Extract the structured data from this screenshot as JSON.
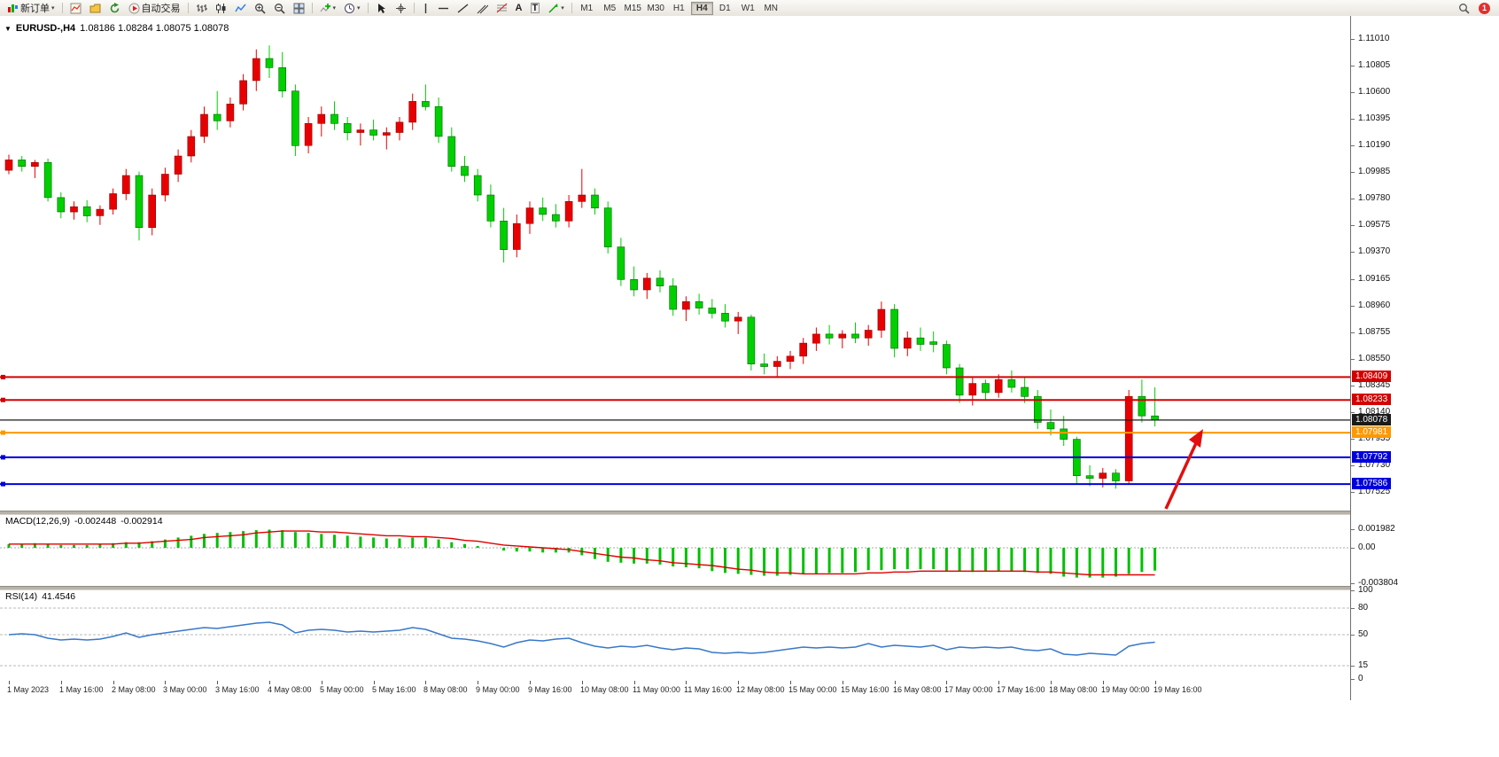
{
  "toolbar": {
    "new_order_label": "新订单",
    "auto_trading_label": "自动交易",
    "text_tool_letter": "A",
    "label_tool_letter": "T",
    "timeframes": [
      "M1",
      "M5",
      "M15",
      "M30",
      "H1",
      "H4",
      "D1",
      "W1",
      "MN"
    ],
    "active_timeframe": "H4",
    "notification_badge": "1",
    "icons": {
      "dropdown_glyph": "▼",
      "caret_glyph": "▾"
    }
  },
  "main_chart": {
    "symbol_label": "EURUSD-,H4",
    "ohlc_label": "1.08186 1.08284 1.08075 1.08078",
    "up_color": "#e80000",
    "down_color": "#00cf00",
    "annotation_arrow_color": "#e01010",
    "price_axis_labels": [
      "1.11010",
      "1.10805",
      "1.10600",
      "1.10395",
      "1.10190",
      "1.09985",
      "1.09780",
      "1.09575",
      "1.09370",
      "1.09165",
      "1.08960",
      "1.08755",
      "1.08550",
      "1.08345",
      "1.08140",
      "1.07935",
      "1.07730",
      "1.07525"
    ],
    "levels": [
      {
        "label": "1.08409",
        "price": 1.08409,
        "color": "#d40000",
        "style": "solid"
      },
      {
        "label": "1.08233",
        "price": 1.08233,
        "color": "#d40000",
        "style": "solid"
      },
      {
        "label": "1.08078",
        "price": 1.08078,
        "color": "#1a1a1a",
        "style": "bid"
      },
      {
        "label": "1.07981",
        "price": 1.07981,
        "color": "#ff9800",
        "style": "solid"
      },
      {
        "label": "1.07792",
        "price": 1.07792,
        "color": "#0000dc",
        "style": "solid"
      },
      {
        "label": "1.07586",
        "price": 1.07586,
        "color": "#0000dc",
        "style": "solid"
      }
    ]
  },
  "chart_data": {
    "type": "candlestick",
    "symbol": "EURUSD",
    "timeframe": "H4",
    "price_range": [
      1.07525,
      1.1101
    ],
    "candles": [
      [
        1.1,
        1.1012,
        1.0997,
        1.1008
      ],
      [
        1.1008,
        1.1011,
        1.0999,
        1.1003
      ],
      [
        1.1003,
        1.1008,
        1.0994,
        1.1006
      ],
      [
        1.1006,
        1.1009,
        1.0976,
        1.0979
      ],
      [
        1.0979,
        1.0983,
        1.0963,
        1.0968
      ],
      [
        1.0968,
        1.0976,
        1.0962,
        1.0972
      ],
      [
        1.0972,
        1.0977,
        1.096,
        1.0965
      ],
      [
        1.0965,
        1.0973,
        1.0958,
        1.097
      ],
      [
        1.097,
        1.0986,
        1.0966,
        1.0982
      ],
      [
        1.0982,
        1.1001,
        1.0977,
        1.0996
      ],
      [
        1.0996,
        1.0999,
        1.0946,
        1.0956
      ],
      [
        1.0956,
        1.0986,
        1.095,
        1.0981
      ],
      [
        1.0981,
        1.1002,
        1.0976,
        1.0997
      ],
      [
        1.0997,
        1.1016,
        1.0991,
        1.1011
      ],
      [
        1.1011,
        1.1031,
        1.1006,
        1.1026
      ],
      [
        1.1026,
        1.1049,
        1.1021,
        1.1043
      ],
      [
        1.1043,
        1.1061,
        1.1031,
        1.1038
      ],
      [
        1.1038,
        1.1056,
        1.1033,
        1.1051
      ],
      [
        1.1051,
        1.1074,
        1.1046,
        1.1069
      ],
      [
        1.1069,
        1.1093,
        1.1061,
        1.1086
      ],
      [
        1.1086,
        1.1096,
        1.1071,
        1.1079
      ],
      [
        1.1079,
        1.1091,
        1.1056,
        1.1061
      ],
      [
        1.1061,
        1.1066,
        1.1011,
        1.1019
      ],
      [
        1.1019,
        1.1041,
        1.1013,
        1.1036
      ],
      [
        1.1036,
        1.1049,
        1.1026,
        1.1043
      ],
      [
        1.1043,
        1.1053,
        1.1031,
        1.1036
      ],
      [
        1.1036,
        1.1041,
        1.1023,
        1.1029
      ],
      [
        1.1029,
        1.1036,
        1.1019,
        1.1031
      ],
      [
        1.1031,
        1.1039,
        1.1023,
        1.1027
      ],
      [
        1.1027,
        1.1033,
        1.1016,
        1.1029
      ],
      [
        1.1029,
        1.1041,
        1.1023,
        1.1037
      ],
      [
        1.1037,
        1.1059,
        1.1031,
        1.1053
      ],
      [
        1.1053,
        1.1066,
        1.1046,
        1.1049
      ],
      [
        1.1049,
        1.1056,
        1.1021,
        1.1026
      ],
      [
        1.1026,
        1.1033,
        1.0999,
        1.1003
      ],
      [
        1.1003,
        1.1011,
        1.0991,
        1.0996
      ],
      [
        1.0996,
        1.1001,
        1.0976,
        1.0981
      ],
      [
        1.0981,
        1.0989,
        1.0956,
        1.0961
      ],
      [
        1.0961,
        1.0971,
        1.0929,
        1.0939
      ],
      [
        1.0939,
        1.0966,
        1.0933,
        1.0959
      ],
      [
        1.0959,
        1.0976,
        1.0951,
        1.0971
      ],
      [
        1.0971,
        1.0979,
        1.0961,
        1.0966
      ],
      [
        1.0966,
        1.0974,
        1.0956,
        1.0961
      ],
      [
        1.0961,
        1.0981,
        1.0956,
        1.0976
      ],
      [
        1.0976,
        1.1001,
        1.0971,
        1.0981
      ],
      [
        1.0981,
        1.0986,
        1.0966,
        1.0971
      ],
      [
        1.0971,
        1.0976,
        1.0936,
        1.0941
      ],
      [
        1.0941,
        1.0948,
        1.0911,
        1.0916
      ],
      [
        1.0916,
        1.0926,
        1.0903,
        1.0908
      ],
      [
        1.0908,
        1.0921,
        1.0901,
        1.0917
      ],
      [
        1.0917,
        1.0923,
        1.0906,
        1.0911
      ],
      [
        1.0911,
        1.0917,
        1.0888,
        1.0893
      ],
      [
        1.0893,
        1.0903,
        1.0884,
        1.0899
      ],
      [
        1.0899,
        1.0905,
        1.0889,
        1.0894
      ],
      [
        1.0894,
        1.0901,
        1.0886,
        1.089
      ],
      [
        1.089,
        1.0897,
        1.0879,
        1.0884
      ],
      [
        1.0884,
        1.0891,
        1.0874,
        1.0887
      ],
      [
        1.0887,
        1.0889,
        1.0846,
        1.0851
      ],
      [
        1.0851,
        1.0859,
        1.0843,
        1.0849
      ],
      [
        1.0849,
        1.0857,
        1.0841,
        1.0853
      ],
      [
        1.0853,
        1.0861,
        1.0847,
        1.0857
      ],
      [
        1.0857,
        1.0871,
        1.0851,
        1.0867
      ],
      [
        1.0867,
        1.0879,
        1.0861,
        1.0874
      ],
      [
        1.0874,
        1.0881,
        1.0866,
        1.0871
      ],
      [
        1.0871,
        1.0877,
        1.0863,
        1.0874
      ],
      [
        1.0874,
        1.0883,
        1.0867,
        1.0871
      ],
      [
        1.0871,
        1.0881,
        1.0865,
        1.0877
      ],
      [
        1.0877,
        1.0899,
        1.0871,
        1.0893
      ],
      [
        1.0893,
        1.0897,
        1.0856,
        1.0863
      ],
      [
        1.0863,
        1.0876,
        1.0857,
        1.0871
      ],
      [
        1.0871,
        1.0879,
        1.0861,
        1.0866
      ],
      [
        1.0868,
        1.0876,
        1.086,
        1.0866
      ],
      [
        1.0866,
        1.0869,
        1.0843,
        1.0848
      ],
      [
        1.0848,
        1.0851,
        1.0821,
        1.0827
      ],
      [
        1.0827,
        1.0841,
        1.0819,
        1.0836
      ],
      [
        1.0836,
        1.0839,
        1.0823,
        1.0829
      ],
      [
        1.0829,
        1.0843,
        1.0825,
        1.0839
      ],
      [
        1.0839,
        1.0846,
        1.0829,
        1.0833
      ],
      [
        1.0833,
        1.0841,
        1.0821,
        1.0826
      ],
      [
        1.0826,
        1.0831,
        1.0801,
        1.0806
      ],
      [
        1.0806,
        1.0816,
        1.0796,
        1.0801
      ],
      [
        1.0801,
        1.0811,
        1.0788,
        1.0793
      ],
      [
        1.0793,
        1.0795,
        1.0759,
        1.0765
      ],
      [
        1.0765,
        1.0773,
        1.0757,
        1.0763
      ],
      [
        1.0763,
        1.0771,
        1.0756,
        1.0767
      ],
      [
        1.0767,
        1.077,
        1.0755,
        1.0761
      ],
      [
        1.0761,
        1.0831,
        1.0758,
        1.0826
      ],
      [
        1.0826,
        1.0839,
        1.0806,
        1.0811
      ],
      [
        1.0811,
        1.0833,
        1.0803,
        1.08078
      ]
    ]
  },
  "macd": {
    "label": "MACD(12,26,9)",
    "main_value": "-0.002448",
    "signal_value": "-0.002914",
    "histogram_color": "#00c000",
    "signal_color": "#e00000",
    "axis_labels": [
      {
        "text": "0.001982",
        "value": 0.001982
      },
      {
        "text": "0.00",
        "value": 0
      },
      {
        "text": "-0.003804",
        "value": -0.003804
      }
    ],
    "histogram": [
      0.0004,
      0.0004,
      0.0005,
      0.0004,
      0.0003,
      0.0003,
      0.0003,
      0.0004,
      0.0005,
      0.0006,
      0.0006,
      0.0007,
      0.0009,
      0.0011,
      0.0013,
      0.0015,
      0.0016,
      0.0017,
      0.0018,
      0.0019,
      0.00195,
      0.0019,
      0.0017,
      0.0016,
      0.0015,
      0.0014,
      0.0013,
      0.0012,
      0.0011,
      0.001,
      0.001,
      0.0011,
      0.0011,
      0.0009,
      0.0006,
      0.0004,
      0.0002,
      0,
      -0.0003,
      -0.0004,
      -0.0004,
      -0.0005,
      -0.0005,
      -0.0005,
      -0.0008,
      -0.0012,
      -0.0015,
      -0.0016,
      -0.0017,
      -0.0017,
      -0.0018,
      -0.002,
      -0.0021,
      -0.0022,
      -0.0025,
      -0.0027,
      -0.0028,
      -0.0029,
      -0.003,
      -0.003,
      -0.0029,
      -0.0028,
      -0.0028,
      -0.0027,
      -0.0027,
      -0.0026,
      -0.0024,
      -0.0024,
      -0.0023,
      -0.0023,
      -0.0023,
      -0.0023,
      -0.0025,
      -0.0025,
      -0.0026,
      -0.0025,
      -0.0025,
      -0.0025,
      -0.0026,
      -0.0027,
      -0.0028,
      -0.0031,
      -0.0032,
      -0.0032,
      -0.0032,
      -0.0031,
      -0.0028,
      -0.0026,
      -0.002448
    ],
    "signal": [
      0.0004,
      0.0004,
      0.0004,
      0.0004,
      0.0004,
      0.0004,
      0.0004,
      0.0004,
      0.0004,
      0.0005,
      0.0005,
      0.0006,
      0.0007,
      0.0008,
      0.0009,
      0.0011,
      0.0012,
      0.0013,
      0.0014,
      0.0016,
      0.0017,
      0.0018,
      0.0018,
      0.0018,
      0.0017,
      0.0017,
      0.0016,
      0.0015,
      0.0014,
      0.0013,
      0.0013,
      0.0012,
      0.0012,
      0.0011,
      0.001,
      0.0008,
      0.0007,
      0.0005,
      0.0003,
      0.0002,
      0.0001,
      0,
      -0.0001,
      -0.0002,
      -0.0004,
      -0.0006,
      -0.0008,
      -0.001,
      -0.0011,
      -0.0013,
      -0.0014,
      -0.0016,
      -0.0017,
      -0.0018,
      -0.0019,
      -0.0021,
      -0.0023,
      -0.0024,
      -0.0026,
      -0.0027,
      -0.0027,
      -0.0028,
      -0.0028,
      -0.0028,
      -0.0028,
      -0.0028,
      -0.0027,
      -0.0027,
      -0.0026,
      -0.0026,
      -0.0025,
      -0.0025,
      -0.0025,
      -0.0025,
      -0.0025,
      -0.0025,
      -0.0025,
      -0.0025,
      -0.0025,
      -0.0026,
      -0.0026,
      -0.0027,
      -0.0028,
      -0.0029,
      -0.0029,
      -0.0029,
      -0.0029,
      -0.0029,
      -0.002914
    ]
  },
  "rsi": {
    "label": "RSI(14)",
    "value": "41.4546",
    "line_color": "#3878c8",
    "axis_labels": [
      {
        "text": "100",
        "value": 100
      },
      {
        "text": "80",
        "value": 80
      },
      {
        "text": "50",
        "value": 50
      },
      {
        "text": "15",
        "value": 15
      },
      {
        "text": "0",
        "value": 0
      }
    ],
    "levels": [
      80,
      50,
      15
    ],
    "values": [
      50,
      51,
      50,
      46,
      44,
      45,
      44,
      45,
      48,
      52,
      47,
      50,
      52,
      54,
      56,
      58,
      57,
      59,
      61,
      63,
      64,
      61,
      52,
      55,
      56,
      55,
      53,
      54,
      53,
      54,
      55,
      58,
      56,
      51,
      46,
      45,
      43,
      40,
      36,
      41,
      44,
      43,
      45,
      46,
      41,
      37,
      35,
      37,
      36,
      38,
      35,
      33,
      35,
      34,
      30,
      29,
      30,
      29,
      30,
      32,
      34,
      36,
      35,
      36,
      35,
      36,
      40,
      36,
      38,
      37,
      36,
      38,
      33,
      36,
      35,
      36,
      35,
      36,
      33,
      32,
      34,
      28,
      27,
      29,
      28,
      27,
      37,
      40,
      41.4546
    ]
  },
  "time_axis": {
    "candles_per_label": 4,
    "labels": [
      "1 May 2023",
      "1 May 16:00",
      "2 May 08:00",
      "3 May 00:00",
      "3 May 16:00",
      "4 May 08:00",
      "5 May 00:00",
      "5 May 16:00",
      "8 May 08:00",
      "9 May 00:00",
      "9 May 16:00",
      "10 May 08:00",
      "11 May 00:00",
      "11 May 16:00",
      "12 May 08:00",
      "15 May 00:00",
      "15 May 16:00",
      "16 May 08:00",
      "17 May 00:00",
      "17 May 16:00",
      "18 May 08:00",
      "19 May 00:00",
      "19 May 16:00"
    ]
  }
}
